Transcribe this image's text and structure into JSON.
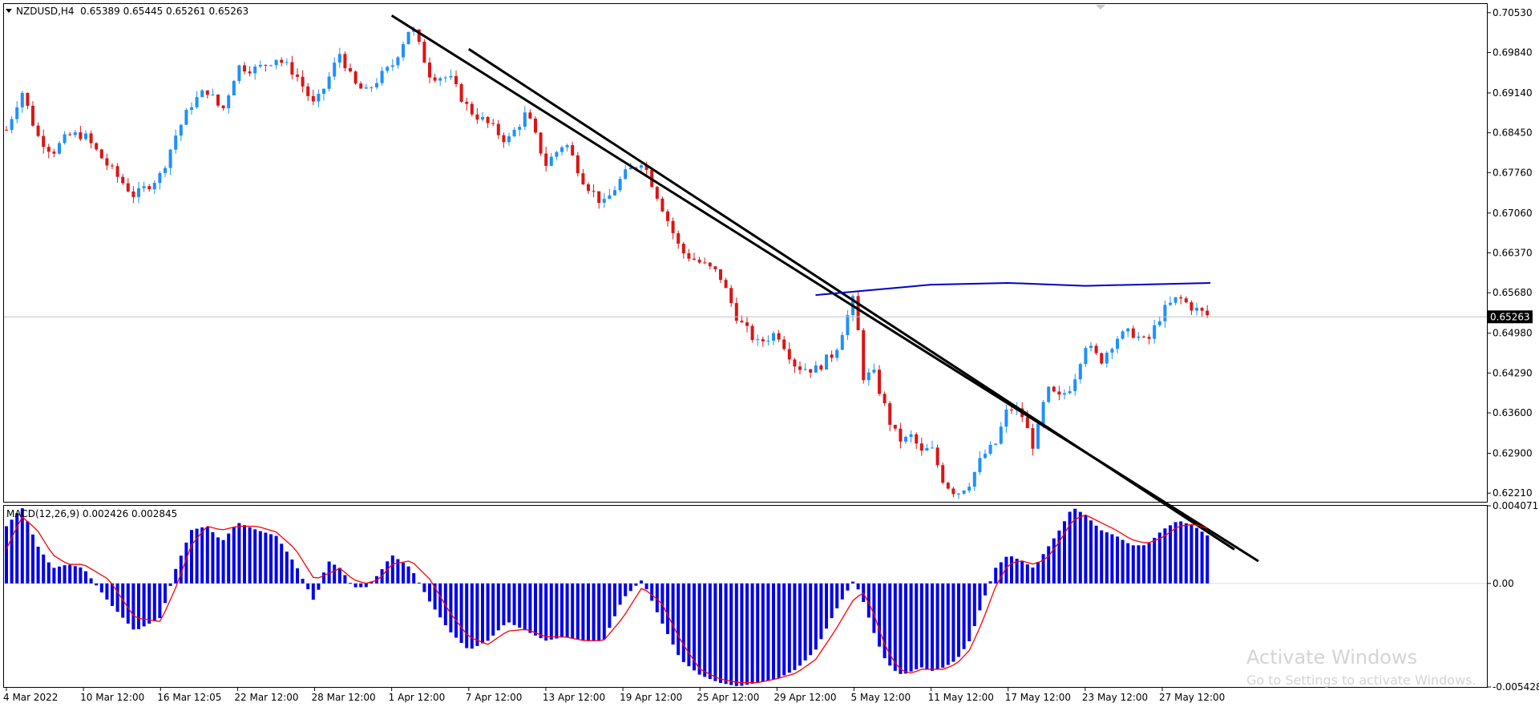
{
  "header": {
    "symbol_info": "NZDUSD,H4  0.65389 0.65445 0.65261 0.65263"
  },
  "macd_header": {
    "text": "MACD(12,26,9) 0.002426 0.002845"
  },
  "watermark": {
    "title": "Activate Windows",
    "subtitle": "Go to Settings to activate Windows."
  },
  "colors": {
    "bull": "#1e90ff",
    "bear": "#dc1414",
    "histogram": "#0000ee",
    "signal": "#ff0000",
    "trendline": "#000000",
    "ma_line": "#0000cc",
    "price_line": "#c0c0c0"
  },
  "chart_data": [
    {
      "type": "candlestick",
      "title": "NZDUSD,H4",
      "ohlc_header": [
        0.65389,
        0.65445,
        0.65261,
        0.65263
      ],
      "current_price": 0.65263,
      "current_price_label": "0.65263",
      "ylim": [
        0.6206,
        0.7068
      ],
      "y_ticks": [
        "0.70530",
        "0.69840",
        "0.69140",
        "0.68450",
        "0.67760",
        "0.67060",
        "0.66370",
        "0.65680",
        "0.64980",
        "0.64290",
        "0.63600",
        "0.62900",
        "0.62210"
      ],
      "x_ticks": [
        "4 Mar 2022",
        "10 Mar 12:00",
        "16 Mar 12:05",
        "22 Mar 12:00",
        "28 Mar 12:00",
        "1 Apr 12:00",
        "7 Apr 12:00",
        "13 Apr 12:00",
        "19 Apr 12:00",
        "25 Apr 12:00",
        "29 Apr 12:00",
        "5 May 12:00",
        "11 May 12:00",
        "17 May 12:00",
        "23 May 12:00",
        "27 May 12:00"
      ],
      "close_path": [
        [
          "4 Mar 2022",
          0.685
        ],
        [
          "",
          0.6918
        ],
        [
          "",
          0.684
        ],
        [
          "",
          0.6812
        ],
        [
          "",
          0.684
        ],
        [
          "10 Mar 12:00",
          0.6842
        ],
        [
          "",
          0.6785
        ],
        [
          "",
          0.6735
        ],
        [
          "16 Mar 12:05",
          0.6772
        ],
        [
          "",
          0.6842
        ],
        [
          "",
          0.6895
        ],
        [
          "",
          0.692
        ],
        [
          "",
          0.6882
        ],
        [
          "22 Mar 12:00",
          0.696
        ],
        [
          "",
          0.6955
        ],
        [
          "",
          0.6975
        ],
        [
          "",
          0.6948
        ],
        [
          "28 Mar 12:00",
          0.689
        ],
        [
          "",
          0.6935
        ],
        [
          "",
          0.6985
        ],
        [
          "",
          0.693
        ],
        [
          "",
          0.6915
        ],
        [
          "",
          0.694
        ],
        [
          "1 Apr 12:00",
          0.696
        ],
        [
          "",
          0.7032
        ],
        [
          "",
          0.6945
        ],
        [
          "",
          0.694
        ],
        [
          "7 Apr 12:00",
          0.6885
        ],
        [
          "",
          0.686
        ],
        [
          "",
          0.683
        ],
        [
          "",
          0.688
        ],
        [
          "13 Apr 12:00",
          0.679
        ],
        [
          "",
          0.683
        ],
        [
          "",
          0.676
        ],
        [
          "",
          0.672
        ],
        [
          "19 Apr 12:00",
          0.677
        ],
        [
          "",
          0.6798
        ],
        [
          "",
          0.672
        ],
        [
          "",
          0.664
        ],
        [
          "25 Apr 12:00",
          0.662
        ],
        [
          "",
          0.66
        ],
        [
          "",
          0.652
        ],
        [
          "",
          0.648
        ],
        [
          "29 Apr 12:00",
          0.65
        ],
        [
          "",
          0.644
        ],
        [
          "",
          0.6435
        ],
        [
          "",
          0.6465
        ],
        [
          "5 May 12:00",
          0.656
        ],
        [
          "",
          0.642
        ],
        [
          "",
          0.643
        ],
        [
          "",
          0.638
        ],
        [
          "",
          0.633
        ],
        [
          "",
          0.631
        ],
        [
          "",
          0.632
        ],
        [
          "",
          0.629
        ],
        [
          "11 May 12:00",
          0.63
        ],
        [
          "",
          0.624
        ],
        [
          "",
          0.622
        ],
        [
          "",
          0.624
        ],
        [
          "",
          0.6285
        ],
        [
          "",
          0.6305
        ],
        [
          "17 May 12:00",
          0.637
        ],
        [
          "",
          0.636
        ],
        [
          "",
          0.63
        ],
        [
          "",
          0.64
        ],
        [
          "",
          0.6385
        ],
        [
          "",
          0.641
        ],
        [
          "23 May 12:00",
          0.648
        ],
        [
          "",
          0.645
        ],
        [
          "",
          0.649
        ],
        [
          "",
          0.65
        ],
        [
          "",
          0.648
        ],
        [
          "27 May 12:00",
          0.6535
        ],
        [
          "",
          0.656
        ],
        [
          "",
          0.654
        ],
        [
          "",
          0.65263
        ]
      ],
      "upper_trendline": [
        [
          "1 Apr 12:00",
          0.7048
        ],
        [
          "27 May 12:00",
          0.6208
        ]
      ],
      "lower_trendline": [
        [
          "7 Apr 12:00",
          0.699
        ],
        [
          "27 May 12:00",
          0.6205
        ]
      ],
      "ma_line": [
        [
          "5 May 12:00",
          0.6564
        ],
        [
          "11 May 12:00",
          0.6582
        ],
        [
          "17 May 12:00",
          0.6585
        ],
        [
          "23 May 12:00",
          0.658
        ],
        [
          "27 May 12:00",
          0.6585
        ]
      ]
    },
    {
      "type": "bar",
      "title": "MACD(12,26,9)",
      "macd_value": 0.002426,
      "signal_value": 0.002845,
      "ylim": [
        -0.005428,
        0.004071
      ],
      "y_ticks": [
        "0.004071",
        "0.00",
        "-0.005428"
      ],
      "histogram_path": [
        [
          "4 Mar 2022",
          0.003
        ],
        [
          "",
          0.004
        ],
        [
          "",
          0.002
        ],
        [
          "",
          0.0008
        ],
        [
          "",
          0.001
        ],
        [
          "10 Mar 12:00",
          0.0008
        ],
        [
          "",
          -0.001
        ],
        [
          "",
          -0.0025
        ],
        [
          "16 Mar 12:05",
          -0.0018
        ],
        [
          "",
          0.0008
        ],
        [
          "",
          0.0028
        ],
        [
          "",
          0.003
        ],
        [
          "",
          0.0022
        ],
        [
          "22 Mar 12:00",
          0.0032
        ],
        [
          "",
          0.0028
        ],
        [
          "",
          0.0025
        ],
        [
          "",
          0.001
        ],
        [
          "28 Mar 12:00",
          -0.001
        ],
        [
          "",
          0.0012
        ],
        [
          "",
          0.0008
        ],
        [
          "",
          -0.0002
        ],
        [
          "",
          -0.0002
        ],
        [
          "",
          0.0005
        ],
        [
          "1 Apr 12:00",
          0.0015
        ],
        [
          "",
          0.0008
        ],
        [
          "",
          -0.001
        ],
        [
          "",
          -0.0025
        ],
        [
          "7 Apr 12:00",
          -0.0035
        ],
        [
          "",
          -0.003
        ],
        [
          "",
          -0.002
        ],
        [
          "",
          -0.0025
        ],
        [
          "13 Apr 12:00",
          -0.003
        ],
        [
          "",
          -0.0028
        ],
        [
          "",
          -0.003
        ],
        [
          "",
          -0.003
        ],
        [
          "19 Apr 12:00",
          -0.0008
        ],
        [
          "",
          0.0002
        ],
        [
          "",
          -0.002
        ],
        [
          "",
          -0.004
        ],
        [
          "25 Apr 12:00",
          -0.0048
        ],
        [
          "",
          -0.0052
        ],
        [
          "",
          -0.0054
        ],
        [
          "",
          -0.0052
        ],
        [
          "29 Apr 12:00",
          -0.005
        ],
        [
          "",
          -0.0045
        ],
        [
          "",
          -0.0035
        ],
        [
          "",
          -0.0015
        ],
        [
          "5 May 12:00",
          0.0002
        ],
        [
          "",
          -0.001
        ],
        [
          "",
          -0.0025
        ],
        [
          "",
          -0.0038
        ],
        [
          "",
          -0.0045
        ],
        [
          "",
          -0.0048
        ],
        [
          "",
          -0.0046
        ],
        [
          "",
          -0.0044
        ],
        [
          "11 May 12:00",
          -0.0046
        ],
        [
          "",
          -0.0044
        ],
        [
          "",
          -0.004
        ],
        [
          "",
          -0.003
        ],
        [
          "",
          -0.001
        ],
        [
          "",
          0.0008
        ],
        [
          "17 May 12:00",
          0.0015
        ],
        [
          "",
          0.0012
        ],
        [
          "",
          0.0008
        ],
        [
          "",
          0.0018
        ],
        [
          "",
          0.0028
        ],
        [
          "",
          0.004
        ],
        [
          "23 May 12:00",
          0.0036
        ],
        [
          "",
          0.0028
        ],
        [
          "",
          0.0025
        ],
        [
          "",
          0.002
        ],
        [
          "",
          0.002
        ],
        [
          "27 May 12:00",
          0.0028
        ],
        [
          "",
          0.0033
        ],
        [
          "",
          0.003
        ],
        [
          "",
          0.0024
        ]
      ],
      "signal_path": [
        [
          "4 Mar 2022",
          0.0018
        ],
        [
          "",
          0.0035
        ],
        [
          "",
          0.0028
        ],
        [
          "",
          0.0015
        ],
        [
          "",
          0.001
        ],
        [
          "10 Mar 12:00",
          0.001
        ],
        [
          "",
          0.0002
        ],
        [
          "",
          -0.0018
        ],
        [
          "16 Mar 12:05",
          -0.002
        ],
        [
          "",
          -0.0002
        ],
        [
          "",
          0.002
        ],
        [
          "",
          0.003
        ],
        [
          "",
          0.0028
        ],
        [
          "22 Mar 12:00",
          0.003
        ],
        [
          "",
          0.003
        ],
        [
          "",
          0.0027
        ],
        [
          "",
          0.0018
        ],
        [
          "28 Mar 12:00",
          0.0002
        ],
        [
          "",
          0.0005
        ],
        [
          "",
          0.0008
        ],
        [
          "",
          0.0002
        ],
        [
          "",
          0.0
        ],
        [
          "",
          0.0002
        ],
        [
          "1 Apr 12:00",
          0.001
        ],
        [
          "",
          0.0012
        ],
        [
          "",
          0.0002
        ],
        [
          "",
          -0.0015
        ],
        [
          "7 Apr 12:00",
          -0.0028
        ],
        [
          "",
          -0.0032
        ],
        [
          "",
          -0.0025
        ],
        [
          "",
          -0.0024
        ],
        [
          "13 Apr 12:00",
          -0.0028
        ],
        [
          "",
          -0.0028
        ],
        [
          "",
          -0.003
        ],
        [
          "",
          -0.003
        ],
        [
          "19 Apr 12:00",
          -0.0018
        ],
        [
          "",
          -0.0002
        ],
        [
          "",
          -0.001
        ],
        [
          "",
          -0.003
        ],
        [
          "25 Apr 12:00",
          -0.0045
        ],
        [
          "",
          -0.005
        ],
        [
          "",
          -0.0052
        ],
        [
          "",
          -0.0052
        ],
        [
          "29 Apr 12:00",
          -0.005
        ],
        [
          "",
          -0.0047
        ],
        [
          "",
          -0.004
        ],
        [
          "",
          -0.0025
        ],
        [
          "5 May 12:00",
          -0.0008
        ],
        [
          "",
          -0.0005
        ],
        [
          "",
          -0.0015
        ],
        [
          "",
          -0.003
        ],
        [
          "",
          -0.004
        ],
        [
          "",
          -0.0046
        ],
        [
          "",
          -0.0047
        ],
        [
          "",
          -0.0045
        ],
        [
          "11 May 12:00",
          -0.0045
        ],
        [
          "",
          -0.0045
        ],
        [
          "",
          -0.0042
        ],
        [
          "",
          -0.0035
        ],
        [
          "",
          -0.002
        ],
        [
          "",
          -0.0002
        ],
        [
          "17 May 12:00",
          0.001
        ],
        [
          "",
          0.0012
        ],
        [
          "",
          0.001
        ],
        [
          "",
          0.0013
        ],
        [
          "",
          0.0022
        ],
        [
          "",
          0.0033
        ],
        [
          "23 May 12:00",
          0.0036
        ],
        [
          "",
          0.0032
        ],
        [
          "",
          0.0028
        ],
        [
          "",
          0.0023
        ],
        [
          "",
          0.0021
        ],
        [
          "27 May 12:00",
          0.0024
        ],
        [
          "",
          0.003
        ],
        [
          "",
          0.0031
        ],
        [
          "",
          0.002845
        ]
      ]
    }
  ]
}
